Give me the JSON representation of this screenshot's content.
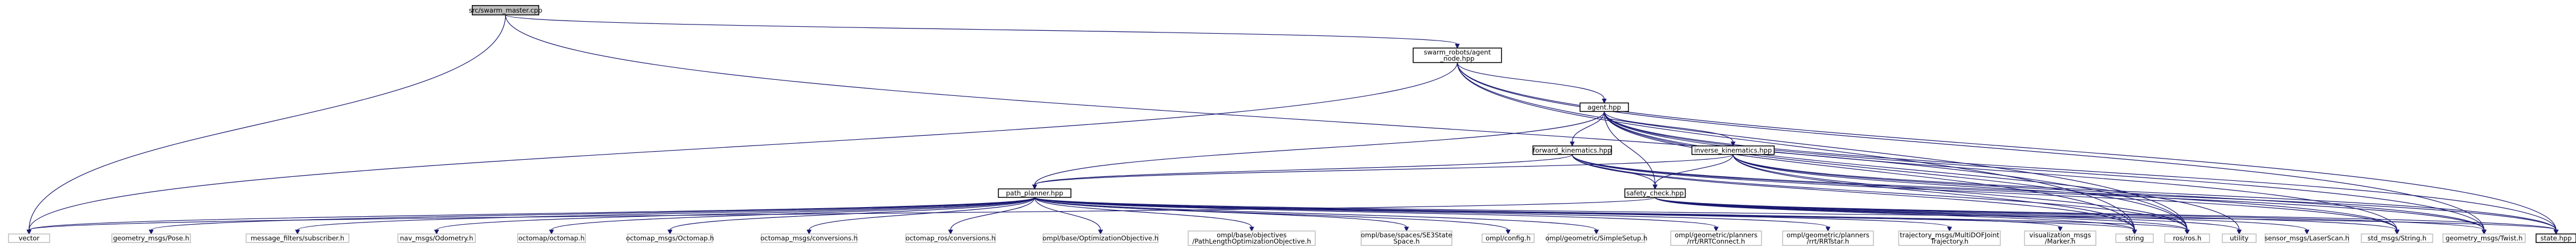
{
  "graph": {
    "nodes": [
      {
        "id": "root",
        "lines": [
          "src/swarm_master.cpp"
        ],
        "kind": "root"
      },
      {
        "id": "agent_node",
        "lines": [
          "swarm_robots/agent",
          "_node.hpp"
        ],
        "kind": "link"
      },
      {
        "id": "agent",
        "lines": [
          "agent.hpp"
        ],
        "kind": "link"
      },
      {
        "id": "fk",
        "lines": [
          "forward_kinematics.hpp"
        ],
        "kind": "link"
      },
      {
        "id": "ik",
        "lines": [
          "inverse_kinematics.hpp"
        ],
        "kind": "link"
      },
      {
        "id": "path_planner",
        "lines": [
          "path_planner.hpp"
        ],
        "kind": "link"
      },
      {
        "id": "safety",
        "lines": [
          "safety_check.hpp"
        ],
        "kind": "link"
      },
      {
        "id": "vector",
        "lines": [
          "vector"
        ],
        "kind": "plain"
      },
      {
        "id": "pose",
        "lines": [
          "geometry_msgs/Pose.h"
        ],
        "kind": "plain"
      },
      {
        "id": "subscriber",
        "lines": [
          "message_filters/subscriber.h"
        ],
        "kind": "plain"
      },
      {
        "id": "odometry",
        "lines": [
          "nav_msgs/Odometry.h"
        ],
        "kind": "plain"
      },
      {
        "id": "octomap",
        "lines": [
          "octomap/octomap.h"
        ],
        "kind": "plain"
      },
      {
        "id": "octomap_msg",
        "lines": [
          "octomap_msgs/Octomap.h"
        ],
        "kind": "plain"
      },
      {
        "id": "octomap_conv",
        "lines": [
          "octomap_msgs/conversions.h"
        ],
        "kind": "plain"
      },
      {
        "id": "octomap_ros",
        "lines": [
          "octomap_ros/conversions.h"
        ],
        "kind": "plain"
      },
      {
        "id": "opt_obj",
        "lines": [
          "ompl/base/OptimizationObjective.h"
        ],
        "kind": "plain"
      },
      {
        "id": "path_len",
        "lines": [
          "ompl/base/objectives",
          "/PathLengthOptimizationObjective.h"
        ],
        "kind": "plain"
      },
      {
        "id": "se3",
        "lines": [
          "ompl/base/spaces/SE3State",
          "Space.h"
        ],
        "kind": "plain"
      },
      {
        "id": "config",
        "lines": [
          "ompl/config.h"
        ],
        "kind": "plain"
      },
      {
        "id": "simple",
        "lines": [
          "ompl/geometric/SimpleSetup.h"
        ],
        "kind": "plain"
      },
      {
        "id": "rrtconnect",
        "lines": [
          "ompl/geometric/planners",
          "/rrt/RRTConnect.h"
        ],
        "kind": "plain"
      },
      {
        "id": "rrtstar",
        "lines": [
          "ompl/geometric/planners",
          "/rrt/RRTstar.h"
        ],
        "kind": "plain"
      },
      {
        "id": "traj",
        "lines": [
          "trajectory_msgs/MultiDOFJoint",
          "Trajectory.h"
        ],
        "kind": "plain"
      },
      {
        "id": "marker",
        "lines": [
          "visualization_msgs",
          "/Marker.h"
        ],
        "kind": "plain"
      },
      {
        "id": "string",
        "lines": [
          "string"
        ],
        "kind": "plain"
      },
      {
        "id": "ros",
        "lines": [
          "ros/ros.h"
        ],
        "kind": "plain"
      },
      {
        "id": "utility",
        "lines": [
          "utility"
        ],
        "kind": "plain"
      },
      {
        "id": "laser",
        "lines": [
          "sensor_msgs/LaserScan.h"
        ],
        "kind": "plain"
      },
      {
        "id": "std_string",
        "lines": [
          "std_msgs/String.h"
        ],
        "kind": "plain"
      },
      {
        "id": "twist",
        "lines": [
          "geometry_msgs/Twist.h"
        ],
        "kind": "plain"
      },
      {
        "id": "state",
        "lines": [
          "state.hpp"
        ],
        "kind": "link"
      }
    ],
    "edges": [
      [
        "root",
        "agent_node"
      ],
      [
        "root",
        "vector"
      ],
      [
        "root",
        "ros"
      ],
      [
        "agent_node",
        "agent"
      ],
      [
        "agent_node",
        "string"
      ],
      [
        "agent_node",
        "ros"
      ],
      [
        "agent_node",
        "vector"
      ],
      [
        "agent_node",
        "twist"
      ],
      [
        "agent_node",
        "state"
      ],
      [
        "agent",
        "fk"
      ],
      [
        "agent",
        "ik"
      ],
      [
        "agent",
        "path_planner"
      ],
      [
        "agent",
        "safety"
      ],
      [
        "agent",
        "string"
      ],
      [
        "agent",
        "ros"
      ],
      [
        "agent",
        "utility"
      ],
      [
        "agent",
        "std_string"
      ],
      [
        "agent",
        "twist"
      ],
      [
        "agent",
        "state"
      ],
      [
        "fk",
        "path_planner"
      ],
      [
        "fk",
        "safety"
      ],
      [
        "fk",
        "string"
      ],
      [
        "fk",
        "ros"
      ],
      [
        "fk",
        "std_string"
      ],
      [
        "fk",
        "twist"
      ],
      [
        "fk",
        "state"
      ],
      [
        "ik",
        "path_planner"
      ],
      [
        "ik",
        "safety"
      ],
      [
        "ik",
        "string"
      ],
      [
        "ik",
        "ros"
      ],
      [
        "ik",
        "std_string"
      ],
      [
        "ik",
        "twist"
      ],
      [
        "ik",
        "state"
      ],
      [
        "path_planner",
        "vector"
      ],
      [
        "path_planner",
        "pose"
      ],
      [
        "path_planner",
        "subscriber"
      ],
      [
        "path_planner",
        "odometry"
      ],
      [
        "path_planner",
        "octomap"
      ],
      [
        "path_planner",
        "octomap_msg"
      ],
      [
        "path_planner",
        "octomap_conv"
      ],
      [
        "path_planner",
        "octomap_ros"
      ],
      [
        "path_planner",
        "opt_obj"
      ],
      [
        "path_planner",
        "path_len"
      ],
      [
        "path_planner",
        "se3"
      ],
      [
        "path_planner",
        "config"
      ],
      [
        "path_planner",
        "simple"
      ],
      [
        "path_planner",
        "rrtconnect"
      ],
      [
        "path_planner",
        "rrtstar"
      ],
      [
        "path_planner",
        "traj"
      ],
      [
        "path_planner",
        "marker"
      ],
      [
        "path_planner",
        "string"
      ],
      [
        "path_planner",
        "ros"
      ],
      [
        "path_planner",
        "state"
      ],
      [
        "safety",
        "vector"
      ],
      [
        "safety",
        "string"
      ],
      [
        "safety",
        "ros"
      ],
      [
        "safety",
        "utility"
      ],
      [
        "safety",
        "laser"
      ],
      [
        "safety",
        "std_string"
      ],
      [
        "safety",
        "twist"
      ],
      [
        "safety",
        "state"
      ]
    ]
  }
}
